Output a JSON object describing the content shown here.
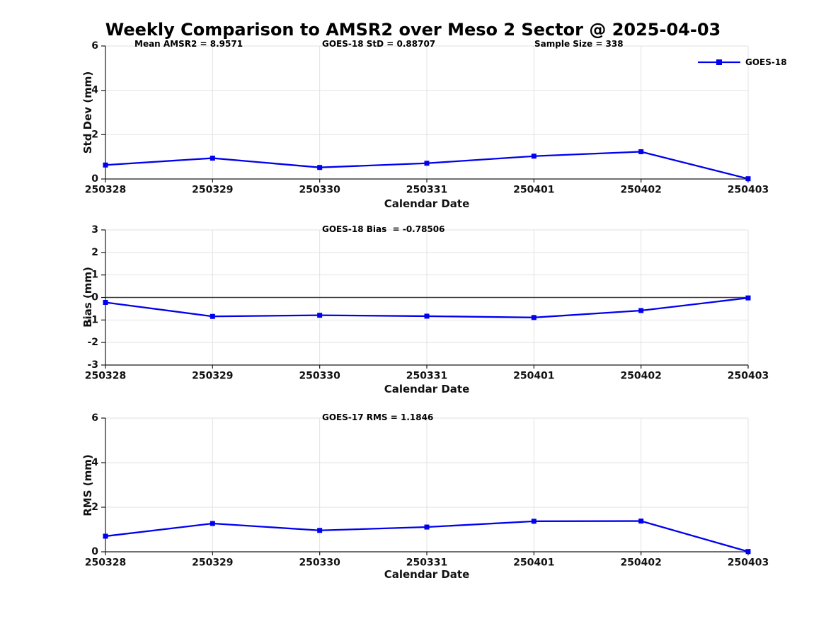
{
  "title": "Weekly Comparison to AMSR2 over Meso 2 Sector @ 2025-04-03",
  "xlabel": "Calendar Date",
  "legend": {
    "label": "GOES-18"
  },
  "annotations": {
    "mean_amsr2": "Mean AMSR2 = 8.9571",
    "goes18_std": "GOES-18 StD = 0.88707",
    "sample_size": "Sample Size = 338",
    "goes18_bias": "GOES-18 Bias  = -0.78506",
    "goes17_rms": "GOES-17 RMS = 1.1846"
  },
  "colors": {
    "series": "#0000EE",
    "grid": "#e2e2e2",
    "axis": "#1a1a1a",
    "zero_line": "#3e3e3e"
  },
  "chart_data": [
    {
      "type": "line",
      "title": "Weekly Comparison to AMSR2 over Meso 2 Sector @ 2025-04-03",
      "series_name": "GOES-18",
      "categories": [
        "250328",
        "250329",
        "250330",
        "250331",
        "250401",
        "250402",
        "250403"
      ],
      "values": [
        0.63,
        0.94,
        0.52,
        0.71,
        1.03,
        1.23,
        0.01
      ],
      "xlabel": "Calendar Date",
      "ylabel": "Std Dev (mm)",
      "ylim": [
        0,
        6
      ],
      "yticks": [
        0,
        2,
        4,
        6
      ],
      "grid": "on",
      "zero_line": false,
      "legend_position": "top-right",
      "annotations": [
        "Mean AMSR2 = 8.9571",
        "GOES-18 StD = 0.88707",
        "Sample Size = 338"
      ]
    },
    {
      "type": "line",
      "title": "GOES-18 Bias  = -0.78506",
      "series_name": "GOES-18",
      "categories": [
        "250328",
        "250329",
        "250330",
        "250331",
        "250401",
        "250402",
        "250403"
      ],
      "values": [
        -0.22,
        -0.84,
        -0.79,
        -0.83,
        -0.89,
        -0.58,
        -0.02
      ],
      "xlabel": "Calendar Date",
      "ylabel": "Bias (mm)",
      "ylim": [
        -3,
        3
      ],
      "yticks": [
        -3,
        -2,
        -1,
        0,
        1,
        2,
        3
      ],
      "grid": "on",
      "zero_line": true,
      "annotations": [
        "GOES-18 Bias  = -0.78506"
      ]
    },
    {
      "type": "line",
      "title": "GOES-17 RMS = 1.1846",
      "series_name": "GOES-18",
      "categories": [
        "250328",
        "250329",
        "250330",
        "250331",
        "250401",
        "250402",
        "250403"
      ],
      "values": [
        0.7,
        1.27,
        0.96,
        1.11,
        1.37,
        1.38,
        0.01
      ],
      "xlabel": "Calendar Date",
      "ylabel": "RMS (mm)",
      "ylim": [
        0,
        6
      ],
      "yticks": [
        0,
        2,
        4,
        6
      ],
      "grid": "on",
      "zero_line": false,
      "annotations": [
        "GOES-17 RMS = 1.1846"
      ]
    }
  ]
}
